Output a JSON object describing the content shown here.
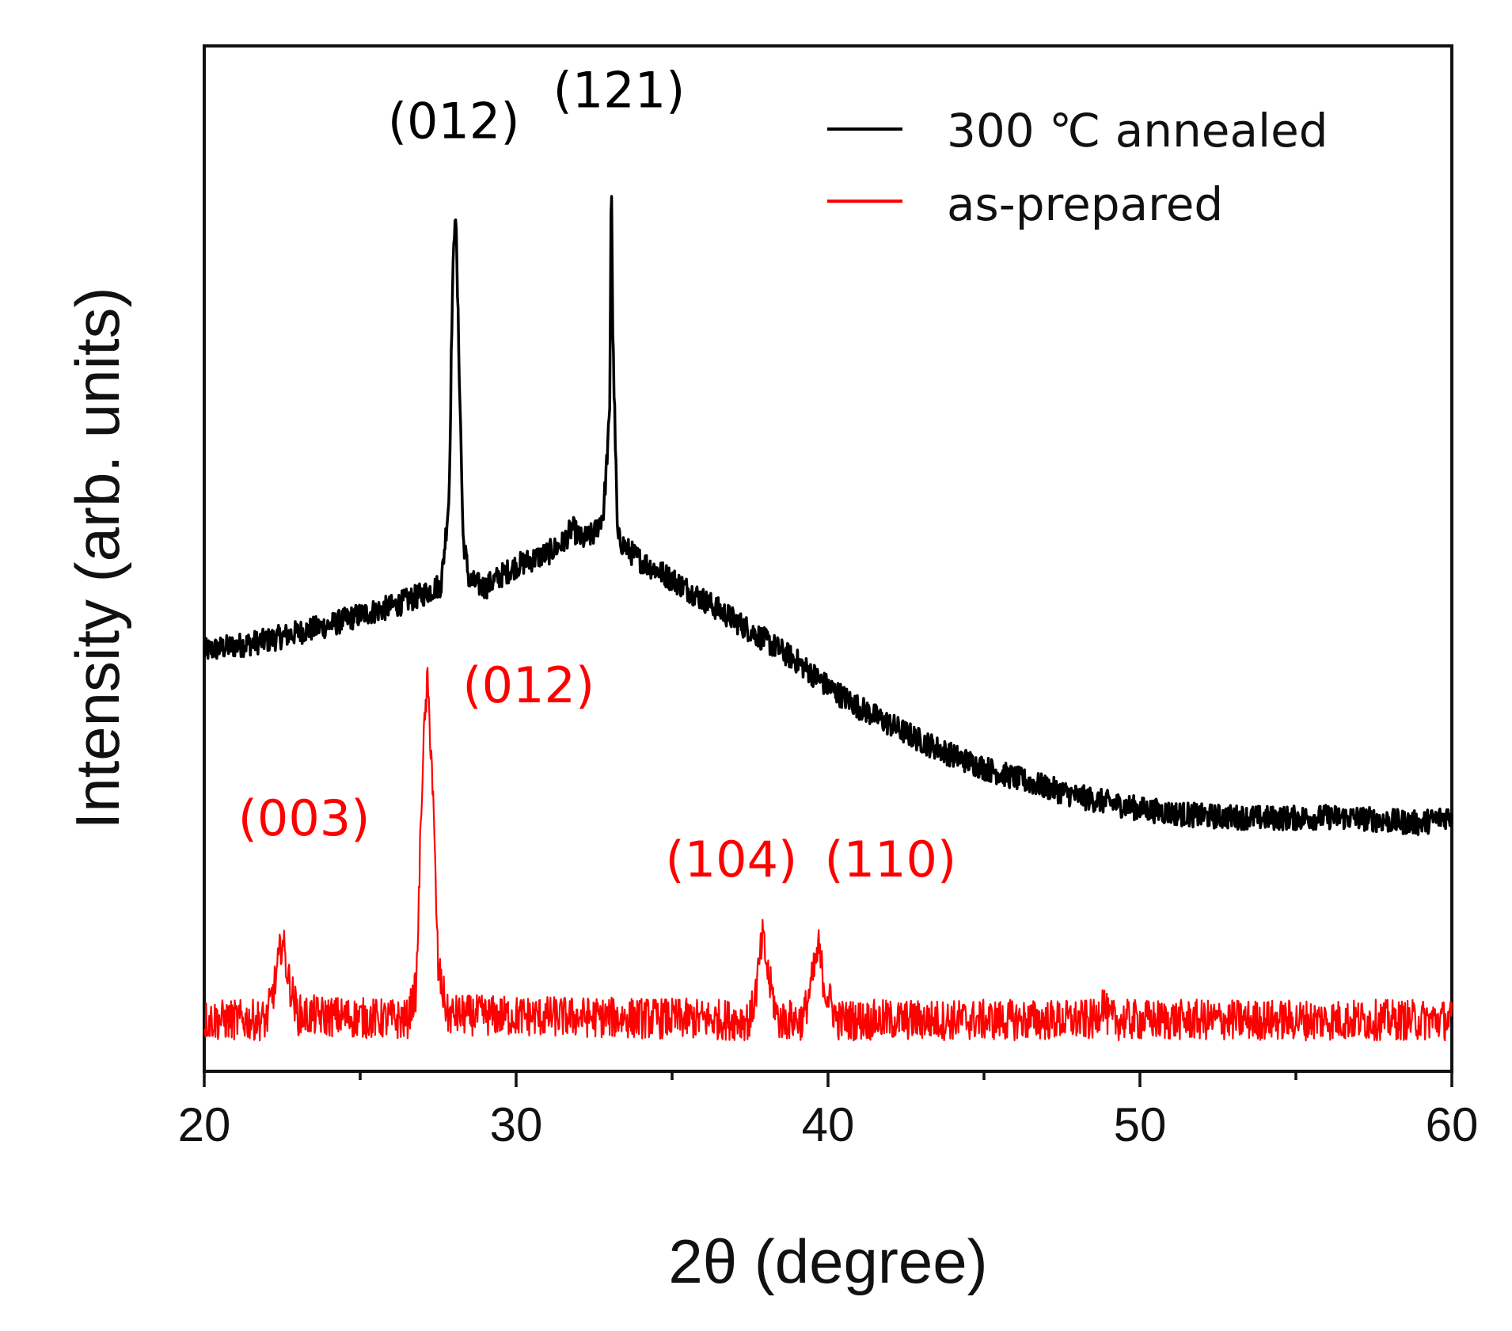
{
  "chart_data": {
    "type": "line",
    "title": "",
    "xlabel": "2θ (degree)",
    "ylabel": "Intensity (arb. units)",
    "xlim": [
      20,
      60
    ],
    "ylim": [
      0,
      100
    ],
    "x_ticks": [
      "20",
      "30",
      "40",
      "50",
      "60"
    ],
    "x_minor_step": 5,
    "y_ticks_labeled": false,
    "grid": false,
    "legend_position": "top-right",
    "colors": {
      "annealed": "#000000",
      "as_prepared": "#ff0000",
      "axis": "#111111"
    },
    "legend": [
      {
        "name": "300 ℃ annealed",
        "color": "#000000"
      },
      {
        "name": "as-prepared",
        "color": "#ff0000"
      }
    ],
    "series": [
      {
        "name": "300 ℃ annealed",
        "color": "#000000",
        "noise": 1.2,
        "points": [
          [
            20,
            41
          ],
          [
            21,
            41.5
          ],
          [
            22,
            42
          ],
          [
            23,
            42.8
          ],
          [
            24,
            43.5
          ],
          [
            25,
            44.5
          ],
          [
            26,
            45.3
          ],
          [
            27,
            46.5
          ],
          [
            27.6,
            47.5
          ],
          [
            27.85,
            56
          ],
          [
            27.95,
            75
          ],
          [
            28.05,
            85
          ],
          [
            28.15,
            72
          ],
          [
            28.3,
            52
          ],
          [
            28.5,
            47.8
          ],
          [
            29,
            47.2
          ],
          [
            29.5,
            48.3
          ],
          [
            30,
            49.3
          ],
          [
            31,
            50.5
          ],
          [
            31.5,
            51.5
          ],
          [
            31.8,
            53
          ],
          [
            32.1,
            51.8
          ],
          [
            32.5,
            52.4
          ],
          [
            32.8,
            54.5
          ],
          [
            33.0,
            64
          ],
          [
            33.05,
            89
          ],
          [
            33.1,
            72
          ],
          [
            33.25,
            52
          ],
          [
            33.6,
            50.8
          ],
          [
            34,
            49.8
          ],
          [
            35,
            48
          ],
          [
            36,
            46
          ],
          [
            37,
            44
          ],
          [
            38,
            42
          ],
          [
            39,
            40
          ],
          [
            40,
            37.5
          ],
          [
            41,
            35.5
          ],
          [
            42,
            33.8
          ],
          [
            43,
            32.2
          ],
          [
            44,
            30.8
          ],
          [
            45,
            29.6
          ],
          [
            46,
            28.6
          ],
          [
            47,
            27.7
          ],
          [
            48,
            26.8
          ],
          [
            49,
            26.2
          ],
          [
            50,
            25.6
          ],
          [
            51,
            25.2
          ],
          [
            52,
            24.9
          ],
          [
            53,
            24.8
          ],
          [
            54,
            24.7
          ],
          [
            55,
            24.7
          ],
          [
            56,
            24.8
          ],
          [
            57,
            24.7
          ],
          [
            58,
            24.4
          ],
          [
            59,
            24.2
          ],
          [
            60,
            25
          ]
        ]
      },
      {
        "name": "as-prepared",
        "color": "#ff0000",
        "noise": 2.0,
        "points": [
          [
            20,
            5
          ],
          [
            22,
            5
          ],
          [
            22.3,
            9
          ],
          [
            22.5,
            13
          ],
          [
            22.7,
            9
          ],
          [
            23,
            5.5
          ],
          [
            26.5,
            5
          ],
          [
            26.8,
            8
          ],
          [
            27.0,
            30
          ],
          [
            27.15,
            38
          ],
          [
            27.3,
            30
          ],
          [
            27.5,
            10
          ],
          [
            27.8,
            5.5
          ],
          [
            37.5,
            5
          ],
          [
            37.7,
            8
          ],
          [
            37.9,
            13
          ],
          [
            38.1,
            9
          ],
          [
            38.4,
            5
          ],
          [
            39.2,
            5
          ],
          [
            39.5,
            9
          ],
          [
            39.7,
            12
          ],
          [
            39.9,
            8
          ],
          [
            40.3,
            5
          ],
          [
            48.6,
            5
          ],
          [
            48.8,
            7
          ],
          [
            49.0,
            5
          ],
          [
            60,
            5
          ]
        ]
      }
    ],
    "annotations": [
      {
        "text": "(012)",
        "x": 28.0,
        "y": 91,
        "color": "#000000"
      },
      {
        "text": "(121)",
        "x": 33.3,
        "y": 94,
        "color": "#000000"
      },
      {
        "text": "(003)",
        "x": 23.2,
        "y": 23,
        "color": "#ff0000"
      },
      {
        "text": "(012)",
        "x": 30.4,
        "y": 36,
        "color": "#ff0000"
      },
      {
        "text": "(104)",
        "x": 36.9,
        "y": 19,
        "color": "#ff0000"
      },
      {
        "text": "(110)",
        "x": 42.0,
        "y": 19,
        "color": "#ff0000"
      }
    ]
  }
}
